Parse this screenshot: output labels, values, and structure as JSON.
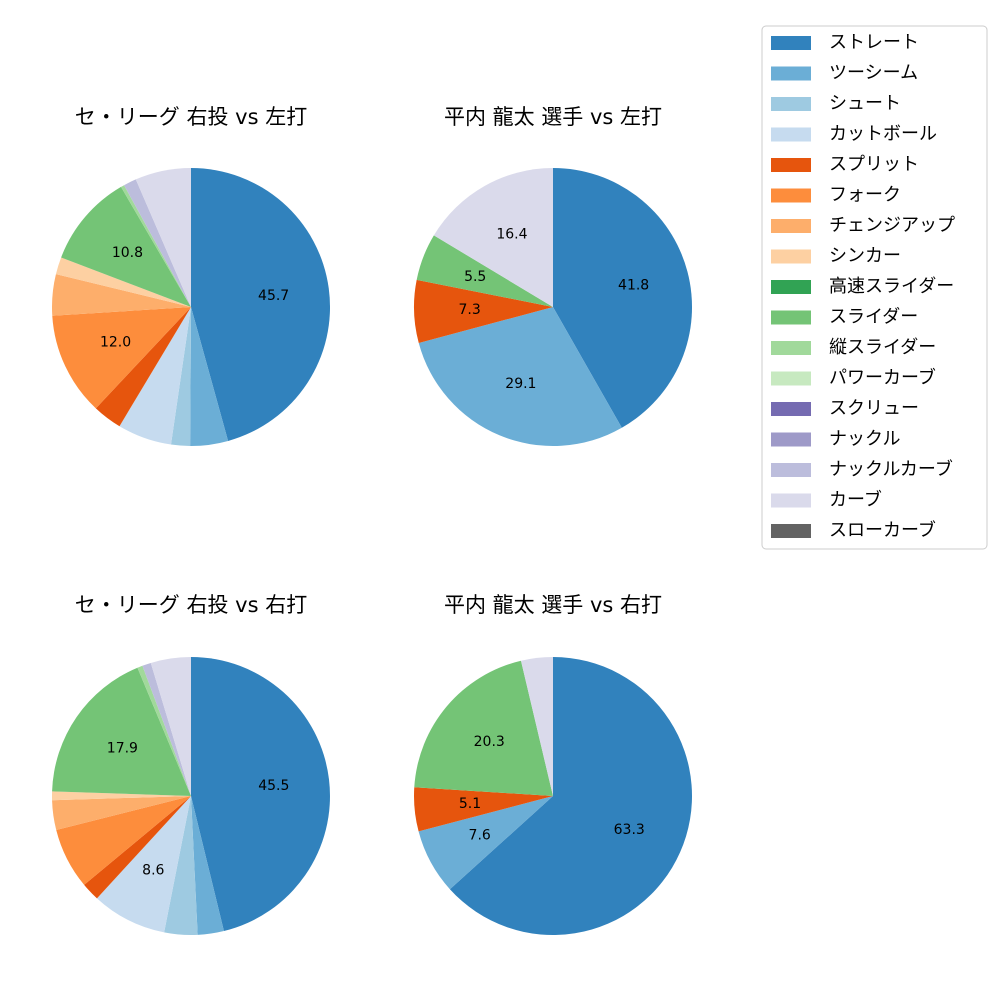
{
  "chart_data": [
    {
      "type": "pie",
      "title": "セ・リーグ 右投 vs 左打",
      "slices": [
        {
          "label": "ストレート",
          "value": 45.7,
          "shown": "45.7"
        },
        {
          "label": "ツーシーム",
          "value": 4.4,
          "shown": ""
        },
        {
          "label": "シュート",
          "value": 2.2,
          "shown": ""
        },
        {
          "label": "カットボール",
          "value": 6.3,
          "shown": ""
        },
        {
          "label": "スプリット",
          "value": 3.4,
          "shown": ""
        },
        {
          "label": "フォーク",
          "value": 12.0,
          "shown": "12.0"
        },
        {
          "label": "チェンジアップ",
          "value": 4.8,
          "shown": ""
        },
        {
          "label": "シンカー",
          "value": 2.0,
          "shown": ""
        },
        {
          "label": "スライダー",
          "value": 10.8,
          "shown": "10.8"
        },
        {
          "label": "縦スライダー",
          "value": 0.4,
          "shown": ""
        },
        {
          "label": "ナックルカーブ",
          "value": 1.5,
          "shown": ""
        },
        {
          "label": "カーブ",
          "value": 6.5,
          "shown": ""
        }
      ]
    },
    {
      "type": "pie",
      "title": "平内 龍太 選手 vs 左打",
      "slices": [
        {
          "label": "ストレート",
          "value": 41.8,
          "shown": "41.8"
        },
        {
          "label": "ツーシーム",
          "value": 29.1,
          "shown": "29.1"
        },
        {
          "label": "スプリット",
          "value": 7.3,
          "shown": "7.3"
        },
        {
          "label": "スライダー",
          "value": 5.5,
          "shown": "5.5"
        },
        {
          "label": "カーブ",
          "value": 16.4,
          "shown": "16.4"
        }
      ]
    },
    {
      "type": "pie",
      "title": "セ・リーグ 右投 vs 右打",
      "slices": [
        {
          "label": "ストレート",
          "value": 45.5,
          "shown": "45.5"
        },
        {
          "label": "ツーシーム",
          "value": 3.0,
          "shown": ""
        },
        {
          "label": "シュート",
          "value": 3.8,
          "shown": ""
        },
        {
          "label": "カットボール",
          "value": 8.6,
          "shown": "8.6"
        },
        {
          "label": "スプリット",
          "value": 2.1,
          "shown": ""
        },
        {
          "label": "フォーク",
          "value": 7.0,
          "shown": ""
        },
        {
          "label": "チェンジアップ",
          "value": 3.4,
          "shown": ""
        },
        {
          "label": "シンカー",
          "value": 1.0,
          "shown": ""
        },
        {
          "label": "スライダー",
          "value": 17.9,
          "shown": "17.9"
        },
        {
          "label": "縦スライダー",
          "value": 0.6,
          "shown": ""
        },
        {
          "label": "ナックルカーブ",
          "value": 1.0,
          "shown": ""
        },
        {
          "label": "カーブ",
          "value": 4.6,
          "shown": ""
        }
      ]
    },
    {
      "type": "pie",
      "title": "平内 龍太 選手 vs 右打",
      "slices": [
        {
          "label": "ストレート",
          "value": 63.3,
          "shown": "63.3"
        },
        {
          "label": "ツーシーム",
          "value": 7.6,
          "shown": "7.6"
        },
        {
          "label": "スプリット",
          "value": 5.1,
          "shown": "5.1"
        },
        {
          "label": "スライダー",
          "value": 20.3,
          "shown": "20.3"
        },
        {
          "label": "カーブ",
          "value": 3.7,
          "shown": ""
        }
      ]
    }
  ],
  "legend": {
    "position": "top-right",
    "items": [
      {
        "label": "ストレート",
        "color": "#3182bd"
      },
      {
        "label": "ツーシーム",
        "color": "#6baed6"
      },
      {
        "label": "シュート",
        "color": "#9ecae1"
      },
      {
        "label": "カットボール",
        "color": "#c6dbef"
      },
      {
        "label": "スプリット",
        "color": "#e6550d"
      },
      {
        "label": "フォーク",
        "color": "#fd8d3c"
      },
      {
        "label": "チェンジアップ",
        "color": "#fdae6b"
      },
      {
        "label": "シンカー",
        "color": "#fdd0a2"
      },
      {
        "label": "高速スライダー",
        "color": "#31a354"
      },
      {
        "label": "スライダー",
        "color": "#74c476"
      },
      {
        "label": "縦スライダー",
        "color": "#a1d99b"
      },
      {
        "label": "パワーカーブ",
        "color": "#c7e9c0"
      },
      {
        "label": "スクリュー",
        "color": "#756bb1"
      },
      {
        "label": "ナックル",
        "color": "#9e9ac8"
      },
      {
        "label": "ナックルカーブ",
        "color": "#bcbddc"
      },
      {
        "label": "カーブ",
        "color": "#dadaeb"
      },
      {
        "label": "スローカーブ",
        "color": "#636363"
      }
    ]
  }
}
